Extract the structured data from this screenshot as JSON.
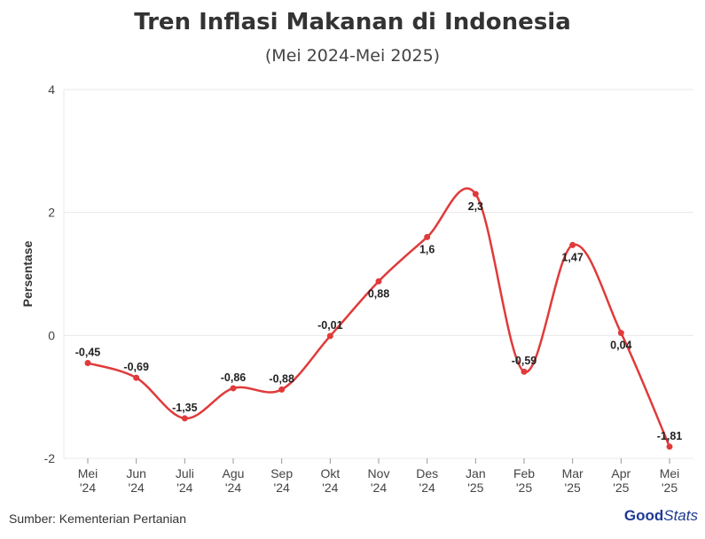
{
  "title": "Tren Inflasi Makanan di Indonesia",
  "subtitle": "(Mei 2024-Mei 2025)",
  "source": "Sumber: Kementerian Pertanian",
  "logo": {
    "part1": "Good",
    "part2": "Stats"
  },
  "colors": {
    "line": "#e03a3a",
    "grid": "#e8e8e8",
    "text": "#333333"
  },
  "chart_data": {
    "type": "line",
    "ylabel": "Persentase",
    "ylim": [
      -2,
      4
    ],
    "yticks": [
      "4",
      "2",
      "0",
      "-2"
    ],
    "ytick_values": [
      4,
      2,
      0,
      -2
    ],
    "categories": [
      [
        "Mei",
        "'24"
      ],
      [
        "Jun",
        "'24"
      ],
      [
        "Juli",
        "'24"
      ],
      [
        "Agu",
        "'24"
      ],
      [
        "Sep",
        "'24"
      ],
      [
        "Okt",
        "'24"
      ],
      [
        "Nov",
        "'24"
      ],
      [
        "Des",
        "'24"
      ],
      [
        "Jan",
        "'25"
      ],
      [
        "Feb",
        "'25"
      ],
      [
        "Mar",
        "'25"
      ],
      [
        "Apr",
        "'25"
      ],
      [
        "Mei",
        "'25"
      ]
    ],
    "values": [
      -0.45,
      -0.69,
      -1.35,
      -0.86,
      -0.88,
      -0.01,
      0.88,
      1.6,
      2.3,
      -0.59,
      1.47,
      0.04,
      -1.81
    ],
    "labels": [
      "-0,45",
      "-0,69",
      "-1,35",
      "-0,86",
      "-0,88",
      "-0,01",
      "0,88",
      "1,6",
      "2,3",
      "-0,59",
      "1,47",
      "0,04",
      "-1,81"
    ],
    "label_position": [
      "above",
      "above",
      "above",
      "above",
      "above",
      "above",
      "below",
      "below",
      "below",
      "above",
      "below",
      "below",
      "above"
    ]
  }
}
